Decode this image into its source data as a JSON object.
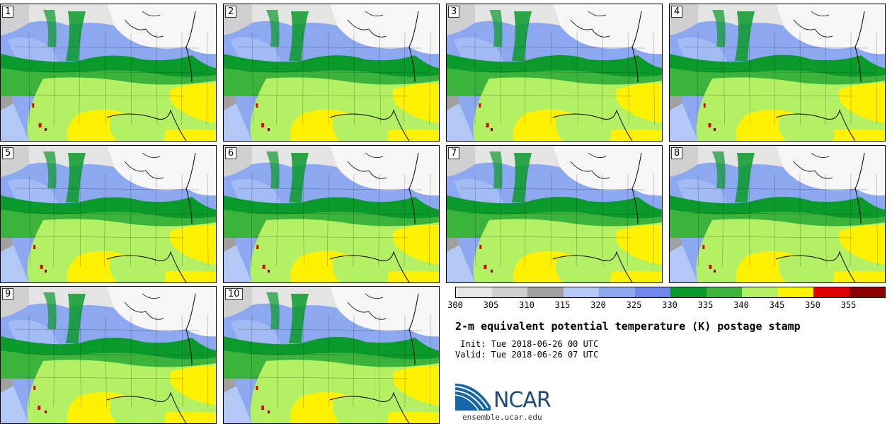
{
  "panels": [
    {
      "label": "1"
    },
    {
      "label": "2"
    },
    {
      "label": "3"
    },
    {
      "label": "4"
    },
    {
      "label": "5"
    },
    {
      "label": "6"
    },
    {
      "label": "7"
    },
    {
      "label": "8"
    },
    {
      "label": "9"
    },
    {
      "label": "10"
    }
  ],
  "colorbar": {
    "ticks": [
      "300",
      "305",
      "310",
      "315",
      "320",
      "325",
      "330",
      "335",
      "340",
      "345",
      "350",
      "355"
    ],
    "colors": [
      "#e8e8e8",
      "#d0d0d0",
      "#a0a0a0",
      "#b4c8f8",
      "#8ca8f0",
      "#6e88ea",
      "#0a9a2a",
      "#3cb43c",
      "#b4f064",
      "#fff200",
      "#e00000",
      "#8c0000"
    ]
  },
  "title": "2-m equivalent potential temperature (K) postage stamp",
  "init_line": " Init: Tue 2018-06-26 00 UTC",
  "valid_line": "Valid: Tue 2018-06-26 07 UTC",
  "logo_text": "NCAR",
  "url": "ensemble.ucar.edu"
}
